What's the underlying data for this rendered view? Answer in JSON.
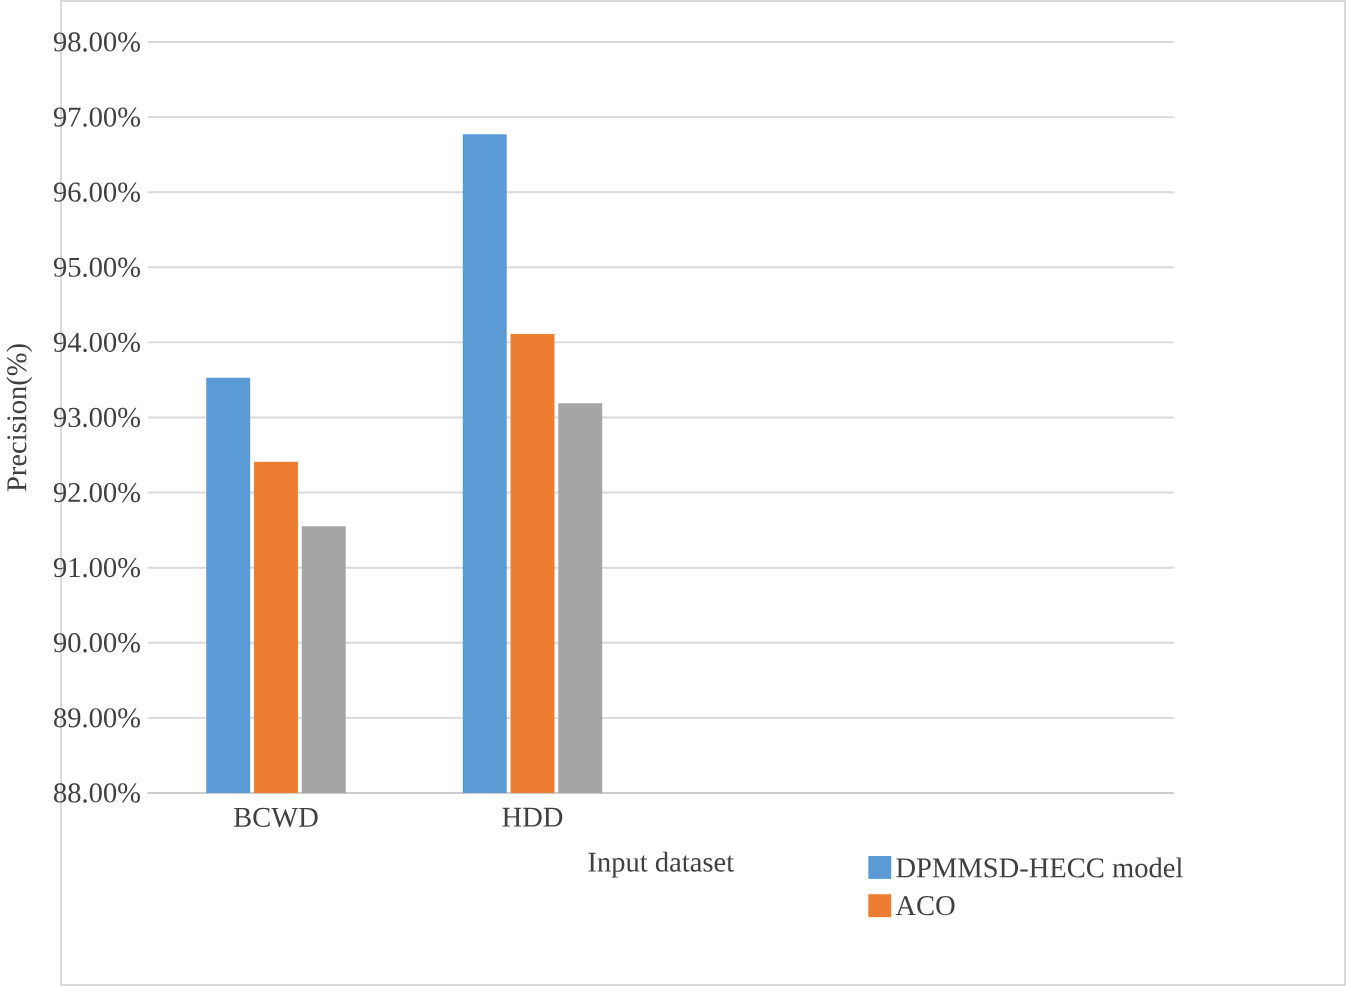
{
  "chart_data": {
    "type": "bar",
    "xlabel": "Input dataset",
    "ylabel": "Precision(%)",
    "categories": [
      "BCWD",
      "HDD",
      null,
      null
    ],
    "series": [
      {
        "name": "DPMMSD-HECC model",
        "color": "#5b9bd5",
        "values": [
          93.53,
          96.77,
          null,
          null
        ]
      },
      {
        "name": "ACO",
        "color": "#ed7d31",
        "values": [
          92.41,
          94.11,
          null,
          null
        ]
      },
      {
        "color": "#a5a5a5",
        "values": [
          91.55,
          93.19,
          null,
          null
        ]
      }
    ],
    "ylim": [
      88,
      98
    ],
    "yticks": [
      {
        "value": 88,
        "label": "88.00%"
      },
      {
        "value": 89,
        "label": "89.00%"
      },
      {
        "value": 90,
        "label": "90.00%"
      },
      {
        "value": 91,
        "label": "91.00%"
      },
      {
        "value": 92,
        "label": "92.00%"
      },
      {
        "value": 93,
        "label": "93.00%"
      },
      {
        "value": 94,
        "label": "94.00%"
      },
      {
        "value": 95,
        "label": "95.00%"
      },
      {
        "value": 96,
        "label": "96.00%"
      },
      {
        "value": 97,
        "label": "97.00%"
      },
      {
        "value": 98,
        "label": "98.00%"
      }
    ],
    "grid": "y",
    "legend": "bottom right"
  }
}
